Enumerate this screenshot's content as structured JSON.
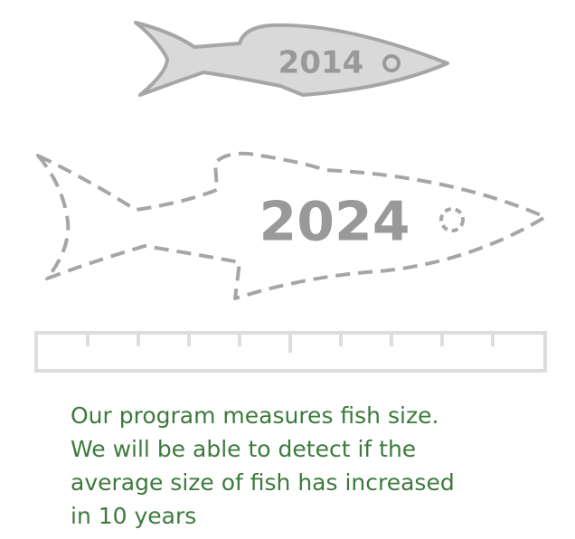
{
  "fish_small": {
    "label": "2014"
  },
  "fish_large": {
    "label": "2024"
  },
  "caption": {
    "lines": [
      "Our program measures fish size.",
      "We will be able to detect if the",
      "average size of fish has increased",
      "in 10 years"
    ]
  }
}
